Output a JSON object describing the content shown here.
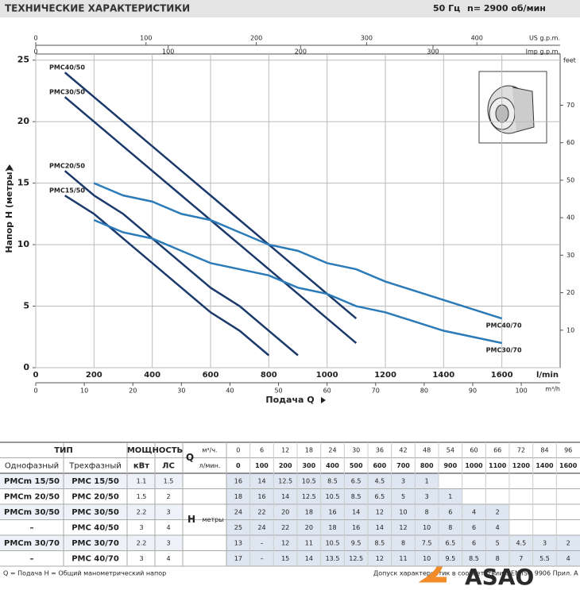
{
  "header": {
    "title": "ТЕХНИЧЕСКИЕ ХАРАКТЕРИСТИКИ",
    "frequency": "50 Гц",
    "speed": "n= 2900 об/мин"
  },
  "chart_data": {
    "type": "line",
    "ylabel": "Напор H (метры)",
    "xlabel": "Подача Q",
    "xunit": "l/min",
    "xlim": [
      0,
      1800
    ],
    "xticks": [
      0,
      200,
      400,
      600,
      800,
      1000,
      1200,
      1400,
      1600
    ],
    "ylim": [
      0,
      25.5
    ],
    "yticks": [
      0,
      5,
      10,
      15,
      20,
      25
    ],
    "grid": true,
    "x_m3h": {
      "label": "m³/h",
      "lim": [
        0,
        108
      ],
      "ticks": [
        0,
        10,
        20,
        30,
        40,
        50,
        60,
        70,
        80,
        90,
        100
      ]
    },
    "x_us_gpm": {
      "label": "US g.p.m.",
      "lim": [
        0,
        475.5
      ],
      "ticks": [
        0,
        100,
        200,
        300,
        400
      ]
    },
    "x_imp_gpm": {
      "label": "Imp g.p.m.",
      "lim": [
        0,
        396
      ],
      "ticks": [
        0,
        100,
        200,
        300
      ]
    },
    "y_feet": {
      "label": "feet",
      "lim": [
        0,
        83.66
      ],
      "ticks": [
        10,
        20,
        30,
        40,
        50,
        60,
        70
      ]
    },
    "series": [
      {
        "name": "PMC40/50",
        "color": "#1b3a6b",
        "x": [
          100,
          200,
          300,
          400,
          500,
          600,
          700,
          800,
          900,
          1000,
          1100
        ],
        "values": [
          24,
          22,
          20,
          18,
          16,
          14,
          12,
          10,
          8,
          6,
          4
        ]
      },
      {
        "name": "PMC30/50",
        "color": "#1b3a6b",
        "x": [
          100,
          200,
          300,
          400,
          500,
          600,
          700,
          800,
          900,
          1000,
          1100
        ],
        "values": [
          22,
          20,
          18,
          16,
          14,
          12,
          10,
          8,
          6,
          4,
          2
        ]
      },
      {
        "name": "PMC20/50",
        "color": "#1b3a6b",
        "x": [
          100,
          200,
          300,
          400,
          500,
          600,
          700,
          800,
          900
        ],
        "values": [
          16,
          14,
          12.5,
          10.5,
          8.5,
          6.5,
          5,
          3,
          1
        ]
      },
      {
        "name": "PMC15/50",
        "color": "#1b3a6b",
        "x": [
          100,
          200,
          300,
          400,
          500,
          600,
          700,
          800
        ],
        "values": [
          14,
          12.5,
          10.5,
          8.5,
          6.5,
          4.5,
          3,
          1
        ]
      },
      {
        "name": "PMC40/70",
        "color": "#2b7bb9",
        "x": [
          200,
          300,
          400,
          500,
          600,
          700,
          800,
          900,
          1000,
          1100,
          1200,
          1400,
          1600
        ],
        "values": [
          15,
          14,
          13.5,
          12.5,
          12,
          11,
          10,
          9.5,
          8.5,
          8,
          7,
          5.5,
          4
        ]
      },
      {
        "name": "PMC30/70",
        "color": "#2b7bb9",
        "x": [
          200,
          300,
          400,
          500,
          600,
          700,
          800,
          900,
          1000,
          1100,
          1200,
          1400,
          1600
        ],
        "values": [
          12,
          11,
          10.5,
          9.5,
          8.5,
          8,
          7.5,
          6.5,
          6,
          5,
          4.5,
          3,
          2
        ]
      }
    ]
  },
  "table": {
    "head": {
      "type": "ТИП",
      "power": "МОЩНОСТЬ",
      "q": "Q",
      "q_m3h_unit": "м³/ч.",
      "q_lmin_unit": "л/мин.",
      "single": "Однофазный",
      "three": "Трехфазный",
      "kw": "кВт",
      "hp": "ЛС",
      "h": "H",
      "h_unit": "метры"
    },
    "q_m3h": [
      0,
      6,
      12,
      18,
      24,
      30,
      36,
      42,
      48,
      54,
      60,
      66,
      72,
      84,
      96
    ],
    "q_lmin": [
      0,
      100,
      200,
      300,
      400,
      500,
      600,
      700,
      800,
      900,
      1000,
      1100,
      1200,
      1400,
      1600
    ],
    "rows": [
      {
        "single": "PMCm 15/50",
        "three": "PMC 15/50",
        "kw": 1.1,
        "hp": 1.5,
        "h": [
          16,
          14,
          12.5,
          10.5,
          8.5,
          6.5,
          4.5,
          3,
          1
        ]
      },
      {
        "single": "PMCm 20/50",
        "three": "PMC 20/50",
        "kw": 1.5,
        "hp": 2,
        "h": [
          18,
          16,
          14,
          12.5,
          10.5,
          8.5,
          6.5,
          5,
          3,
          1
        ]
      },
      {
        "single": "PMCm 30/50",
        "three": "PMC 30/50",
        "kw": 2.2,
        "hp": 3,
        "h": [
          24,
          22,
          20,
          18,
          16,
          14,
          12,
          10,
          8,
          6,
          4,
          2
        ]
      },
      {
        "single": "–",
        "three": "PMC 40/50",
        "kw": 3,
        "hp": 4,
        "h": [
          25,
          24,
          22,
          20,
          18,
          16,
          14,
          12,
          10,
          8,
          6,
          4
        ]
      },
      {
        "single": "PMCm 30/70",
        "three": "PMC 30/70",
        "kw": 2.2,
        "hp": 3,
        "h": [
          13,
          "–",
          12,
          11,
          10.5,
          9.5,
          8.5,
          8,
          7.5,
          6.5,
          6,
          5,
          4.5,
          3,
          2
        ]
      },
      {
        "single": "–",
        "three": "PMC 40/70",
        "kw": 3,
        "hp": 4,
        "h": [
          17,
          "–",
          15,
          14,
          13.5,
          12.5,
          12,
          11,
          10,
          9.5,
          8.5,
          8,
          7,
          5.5,
          4
        ]
      }
    ]
  },
  "footer": {
    "legend": "Q = Подача   H = Общий манометрический напор",
    "tolerance": "Допуск характеристик в соответствии с EN ISO 9906 Прил. A",
    "logo": "ASAO"
  }
}
